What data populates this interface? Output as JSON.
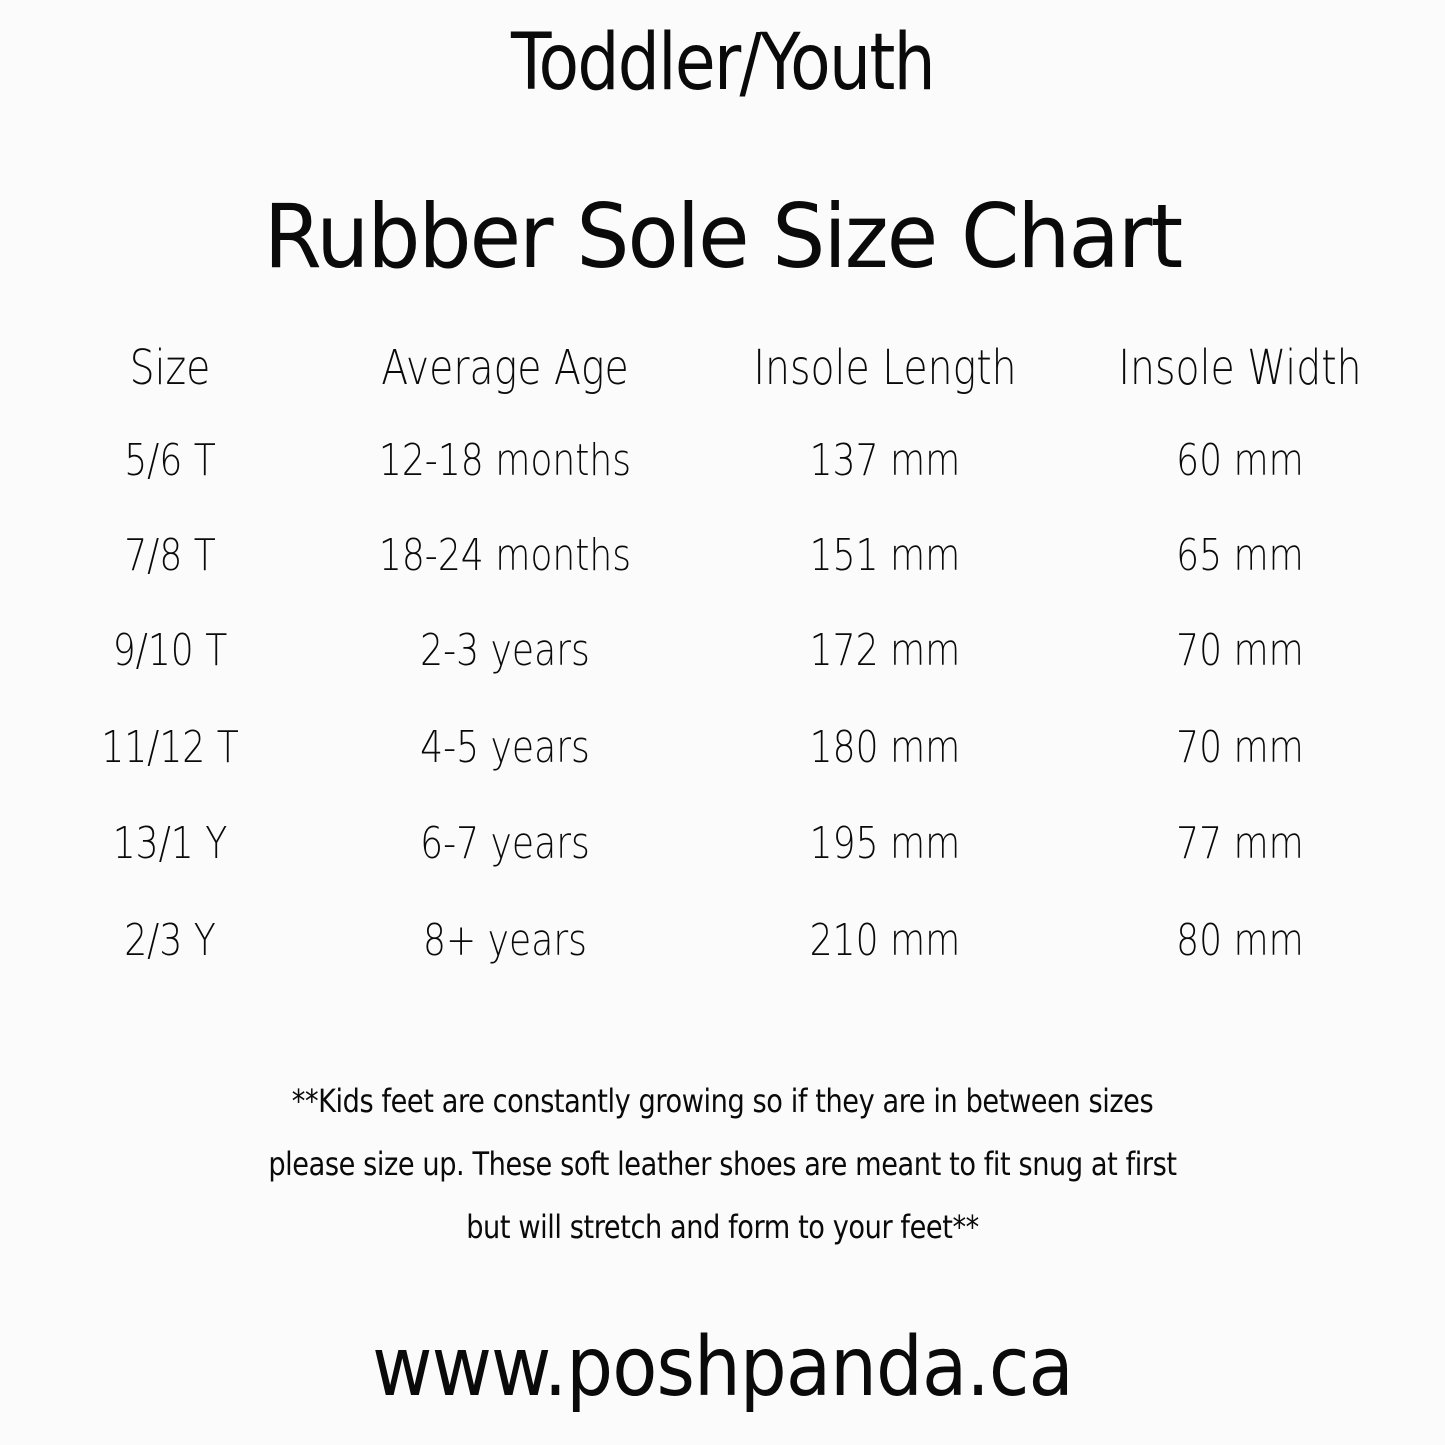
{
  "title_line1": "Toddler/Youth",
  "title_line2": "Rubber Sole Size Chart",
  "table": {
    "headers": [
      "Size",
      "Average Age",
      "Insole Length",
      "Insole Width"
    ],
    "rows": [
      [
        "5/6 T",
        "12-18 months",
        "137 mm",
        "60 mm"
      ],
      [
        "7/8 T",
        "18-24 months",
        "151 mm",
        "65 mm"
      ],
      [
        "9/10 T",
        "2-3 years",
        "172 mm",
        "70 mm"
      ],
      [
        "11/12 T",
        "4-5 years",
        "180 mm",
        "70 mm"
      ],
      [
        "13/1 Y",
        "6-7 years",
        "195 mm",
        "77 mm"
      ],
      [
        "2/3 Y",
        "8+ years",
        "210 mm",
        "80 mm"
      ]
    ]
  },
  "note": [
    "**Kids feet are constantly growing so if they are in between sizes",
    "please size up. These soft leather shoes are meant to fit snug at first",
    "but will stretch and form to your feet**"
  ],
  "website": "www.poshpanda.ca"
}
